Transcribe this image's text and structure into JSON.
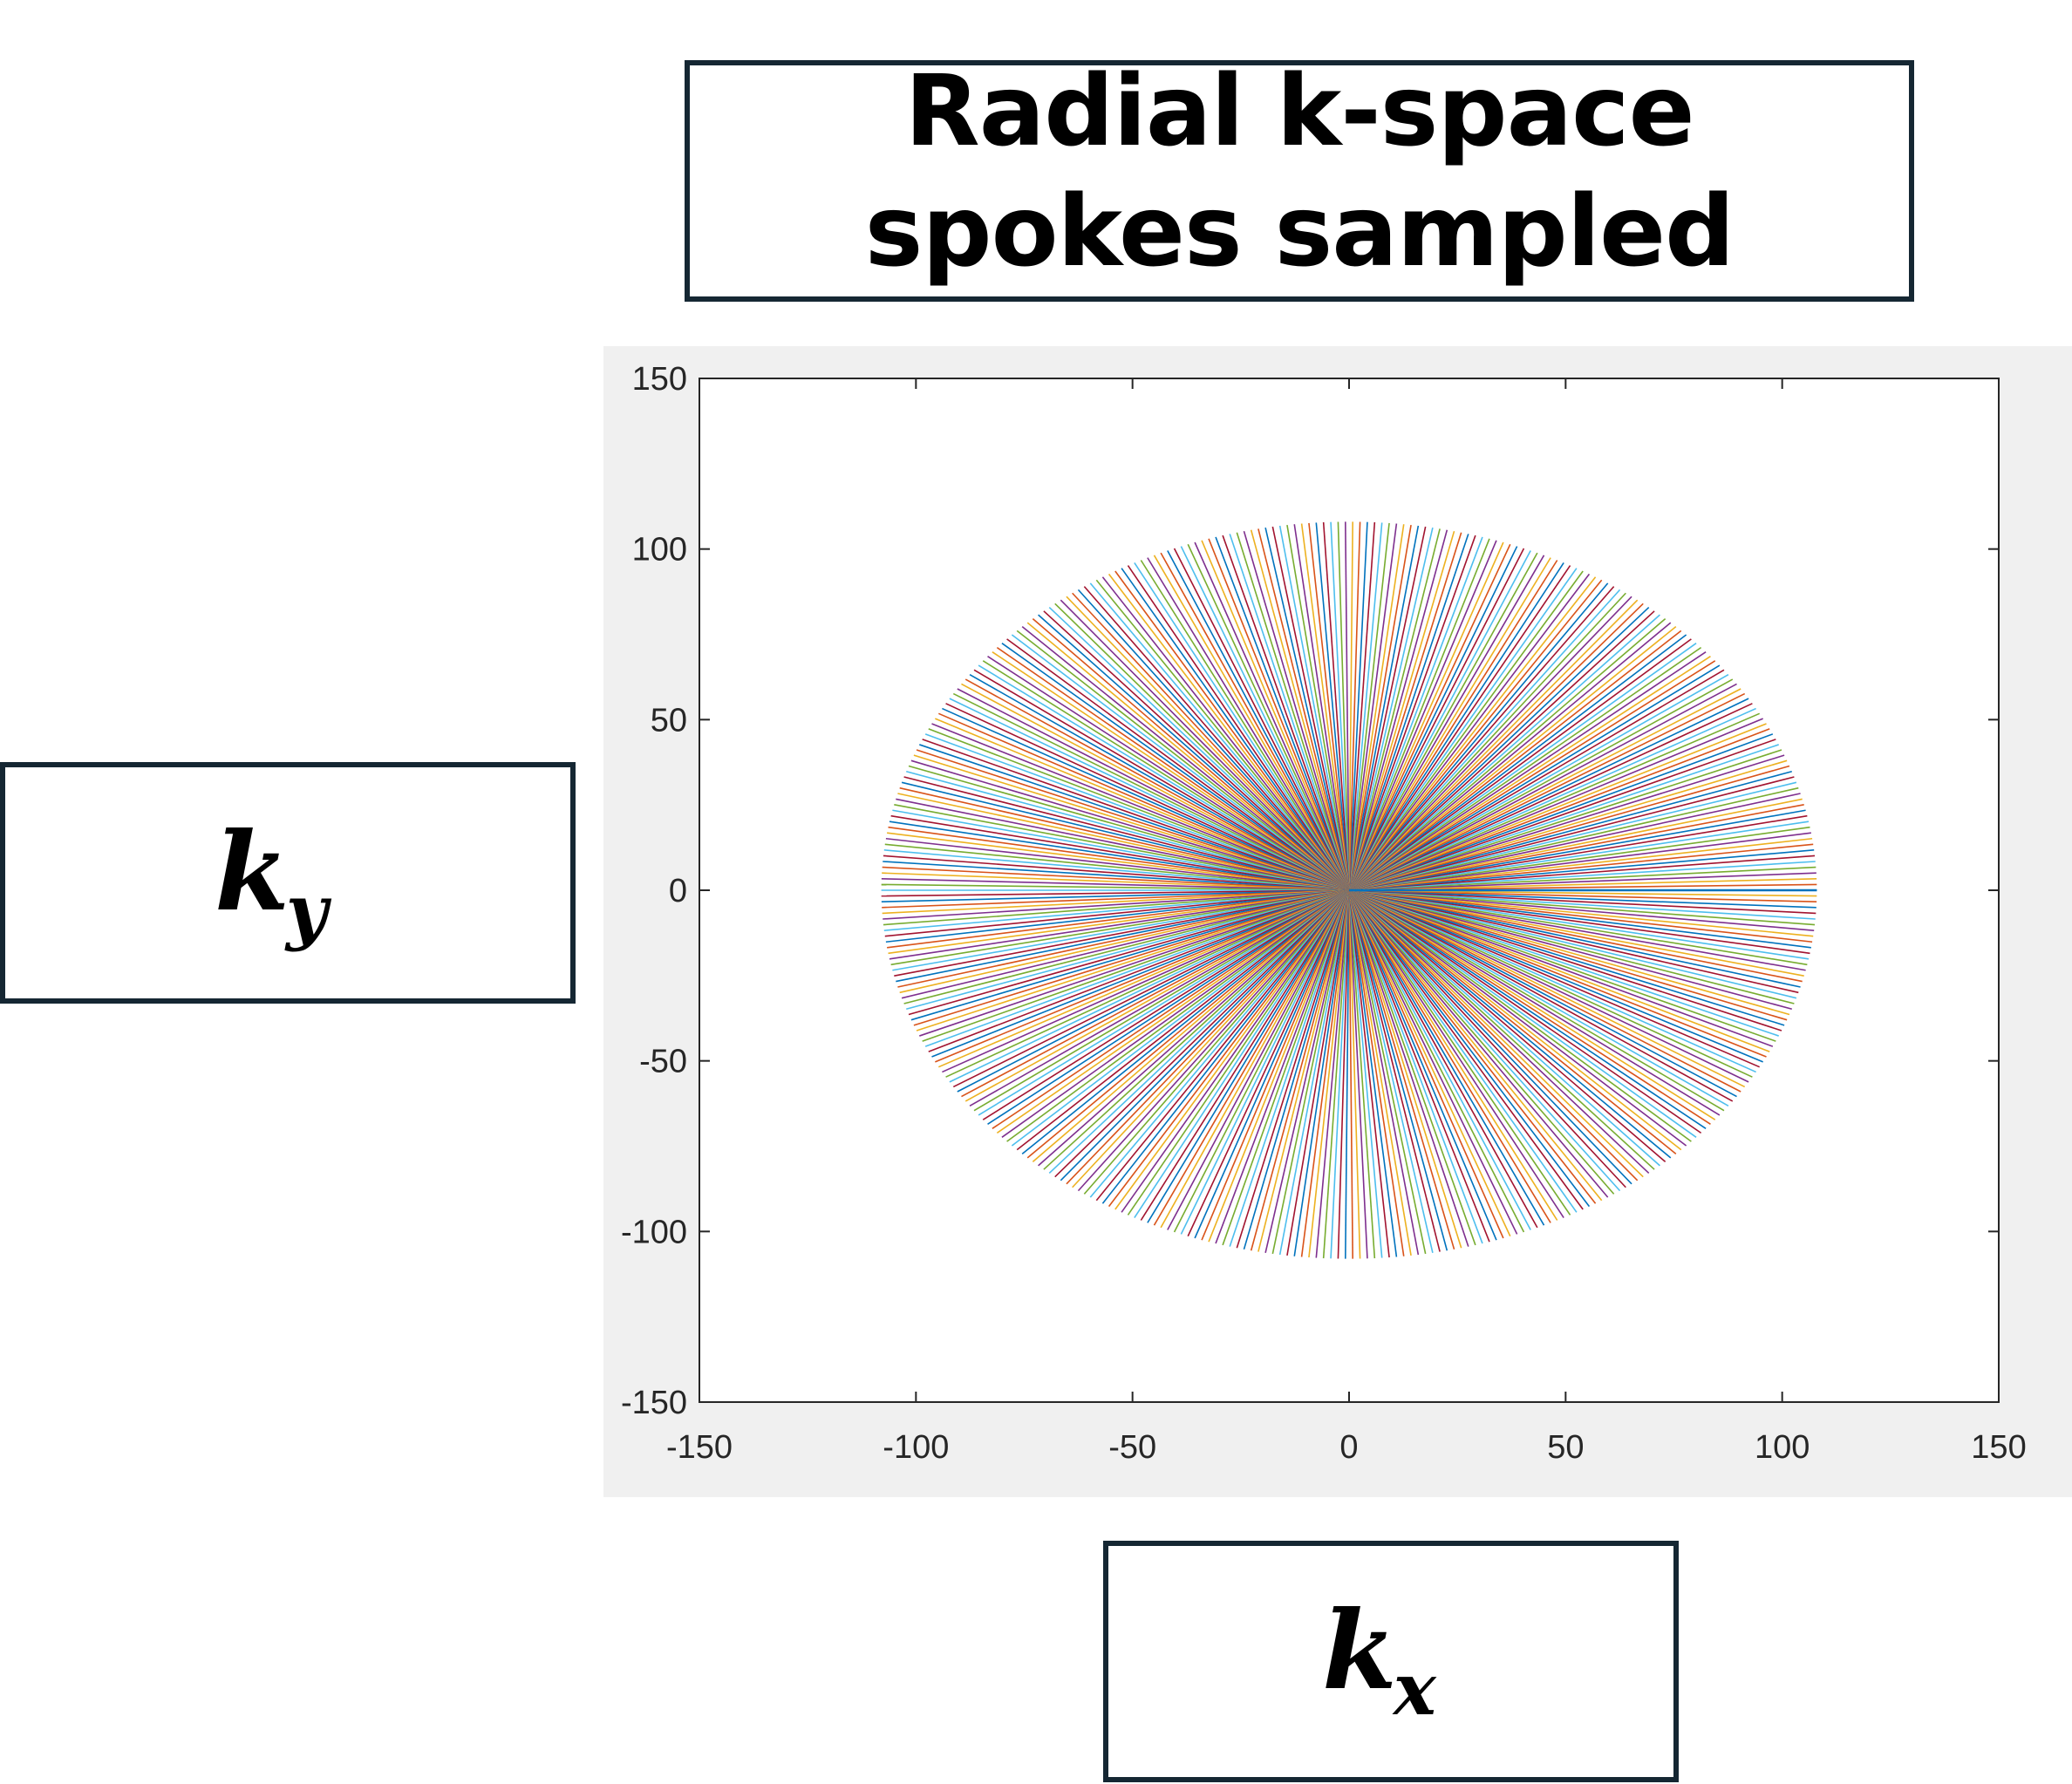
{
  "header": {
    "title_line1": "Radial k-space",
    "title_line2": "spokes sampled"
  },
  "axis_labels": {
    "y": {
      "symbol": "k",
      "subscript": "y"
    },
    "x": {
      "symbol": "k",
      "subscript": "x"
    }
  },
  "chart_data": {
    "type": "line",
    "title": "Radial k-space spokes sampled",
    "xlabel": "k_x",
    "ylabel": "k_y",
    "xlim": [
      -150,
      150
    ],
    "ylim": [
      -150,
      150
    ],
    "xticks": [
      -150,
      -100,
      -50,
      0,
      50,
      100,
      150
    ],
    "yticks": [
      -150,
      -100,
      -50,
      0,
      50,
      100,
      150
    ],
    "xtick_labels": [
      "-150",
      "-100",
      "-50",
      "0",
      "50",
      "100",
      "150"
    ],
    "ytick_labels": [
      "-150",
      "-100",
      "-50",
      "0",
      "50",
      "100",
      "150"
    ],
    "grid": false,
    "spokes": {
      "count": 402,
      "radius": 108,
      "center": [
        0,
        0
      ],
      "angle_range_deg": [
        0,
        360
      ]
    },
    "series_colors": [
      "#0072bd",
      "#d95319",
      "#edb120",
      "#7e2f8e",
      "#77ac30",
      "#4dbeee",
      "#a2142f"
    ]
  }
}
